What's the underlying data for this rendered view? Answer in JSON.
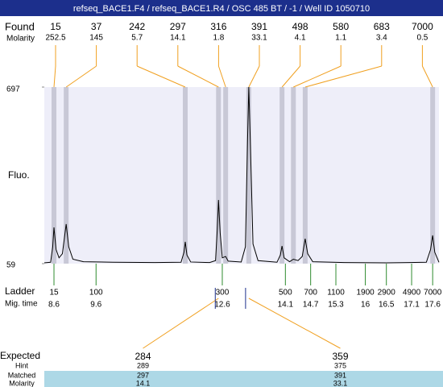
{
  "header": {
    "title": "refseq_BACE1.F4 / refseq_BACE1.R4 / OSC 485 BT / -1 / Well ID 1050710"
  },
  "found": {
    "label": "Found",
    "molarity_label": "Molarity",
    "sizes": [
      15,
      37,
      242,
      297,
      316,
      391,
      498,
      580,
      683,
      7000
    ],
    "molarity": [
      252.5,
      145,
      5.7,
      14.1,
      1.8,
      33.1,
      4.1,
      1.1,
      3.4,
      0.5
    ],
    "times": [
      8.6,
      8.89,
      11.72,
      12.51,
      12.68,
      13.23,
      14.02,
      14.29,
      14.57,
      17.6
    ]
  },
  "chart_data": {
    "type": "line",
    "ylabel": "Fluo.",
    "x": [
      8.37,
      8.52,
      8.57,
      8.6,
      8.65,
      8.72,
      8.8,
      8.89,
      8.95,
      9.05,
      9.3,
      10,
      11,
      11.62,
      11.69,
      11.72,
      11.76,
      11.85,
      12.3,
      12.44,
      12.48,
      12.51,
      12.55,
      12.6,
      12.68,
      12.74,
      13.05,
      13.15,
      13.2,
      13.23,
      13.27,
      13.33,
      13.45,
      13.9,
      13.98,
      14.02,
      14.07,
      14.2,
      14.29,
      14.4,
      14.5,
      14.57,
      14.63,
      14.75,
      15.5,
      16.5,
      17.45,
      17.55,
      17.6,
      17.65,
      17.75
    ],
    "values": [
      62,
      64,
      120,
      190,
      110,
      80,
      95,
      202,
      120,
      75,
      66,
      64,
      63,
      64,
      100,
      138,
      90,
      65,
      63,
      70,
      180,
      289,
      170,
      80,
      85,
      68,
      65,
      120,
      500,
      697,
      480,
      130,
      70,
      64,
      90,
      123,
      80,
      66,
      75,
      70,
      85,
      149,
      95,
      66,
      63,
      62,
      64,
      110,
      161,
      100,
      64
    ],
    "xlim": [
      8.37,
      17.75
    ],
    "ylim": [
      59,
      697
    ],
    "yticks": [
      59,
      697
    ],
    "color": "#000000",
    "band_color": "#c8c8d6",
    "background": "#eeeef9"
  },
  "ladder": {
    "label": "Ladder",
    "time_label": "Mig. time",
    "sizes": [
      15,
      100,
      300,
      500,
      700,
      1100,
      1900,
      2900,
      4900,
      7000
    ],
    "times": [
      8.6,
      9.6,
      12.6,
      14.1,
      14.7,
      15.3,
      16,
      16.5,
      17.1,
      17.6
    ]
  },
  "expected": {
    "label": "Expected",
    "hint_label": "Hint",
    "matched_label": "Matched",
    "molarity_label": "Molarity",
    "values": [
      284,
      359
    ],
    "hint": [
      289,
      375
    ],
    "matched": [
      297,
      391
    ],
    "molarity": [
      14.1,
      33.1
    ]
  }
}
